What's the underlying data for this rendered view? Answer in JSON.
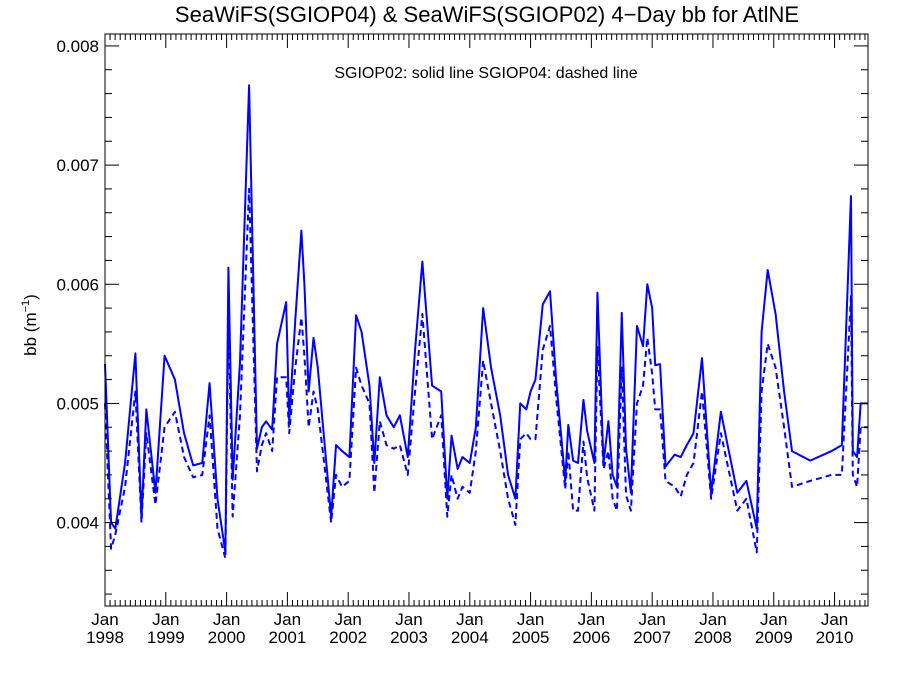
{
  "chart_data": {
    "type": "line",
    "title": "SeaWiFS(SGIOP04) & SeaWiFS(SGIOP02) 4−Day bb for AtlNE",
    "annotation": "SGIOP02: solid line   SGIOP04: dashed line",
    "ylabel": "bb (m",
    "ylabel_sup": "−1",
    "ylabel_close": ")",
    "ylim": [
      0.0033,
      0.0081
    ],
    "yticks": [
      {
        "value": 0.004,
        "label": "0.004"
      },
      {
        "value": 0.005,
        "label": "0.005"
      },
      {
        "value": 0.006,
        "label": "0.006"
      },
      {
        "value": 0.007,
        "label": "0.007"
      },
      {
        "value": 0.008,
        "label": "0.008"
      }
    ],
    "xlim": [
      1998.0,
      2010.55
    ],
    "xticks": [
      {
        "value": 1998,
        "month": "Jan",
        "year": "1998"
      },
      {
        "value": 1999,
        "month": "Jan",
        "year": "1999"
      },
      {
        "value": 2000,
        "month": "Jan",
        "year": "2000"
      },
      {
        "value": 2001,
        "month": "Jan",
        "year": "2001"
      },
      {
        "value": 2002,
        "month": "Jan",
        "year": "2002"
      },
      {
        "value": 2003,
        "month": "Jan",
        "year": "2003"
      },
      {
        "value": 2004,
        "month": "Jan",
        "year": "2004"
      },
      {
        "value": 2005,
        "month": "Jan",
        "year": "2005"
      },
      {
        "value": 2006,
        "month": "Jan",
        "year": "2006"
      },
      {
        "value": 2007,
        "month": "Jan",
        "year": "2007"
      },
      {
        "value": 2008,
        "month": "Jan",
        "year": "2008"
      },
      {
        "value": 2009,
        "month": "Jan",
        "year": "2009"
      },
      {
        "value": 2010,
        "month": "Jan",
        "year": "2010"
      }
    ],
    "grid": false,
    "line_color": "#0000ff",
    "series": [
      {
        "name": "SGIOP02",
        "style": "solid",
        "x": [
          1998.0,
          1998.1,
          1998.17,
          1998.33,
          1998.5,
          1998.6,
          1998.68,
          1998.83,
          1998.98,
          1999.15,
          1999.3,
          1999.45,
          1999.6,
          1999.72,
          1999.85,
          1999.98,
          2000.03,
          2000.1,
          2000.22,
          2000.37,
          2000.5,
          2000.58,
          2000.65,
          2000.75,
          2000.83,
          2000.98,
          2001.03,
          2001.13,
          2001.23,
          2001.28,
          2001.35,
          2001.43,
          2001.5,
          2001.57,
          2001.72,
          2001.8,
          2001.9,
          2002.02,
          2002.13,
          2002.22,
          2002.35,
          2002.43,
          2002.52,
          2002.63,
          2002.75,
          2002.85,
          2002.98,
          2003.1,
          2003.22,
          2003.38,
          2003.53,
          2003.63,
          2003.7,
          2003.8,
          2003.88,
          2004.0,
          2004.1,
          2004.22,
          2004.35,
          2004.5,
          2004.63,
          2004.75,
          2004.83,
          2004.93,
          2005.0,
          2005.08,
          2005.2,
          2005.32,
          2005.42,
          2005.57,
          2005.62,
          2005.7,
          2005.78,
          2005.87,
          2005.93,
          2006.05,
          2006.1,
          2006.2,
          2006.28,
          2006.35,
          2006.42,
          2006.5,
          2006.57,
          2006.65,
          2006.75,
          2006.85,
          2006.92,
          2007.0,
          2007.05,
          2007.13,
          2007.22,
          2007.37,
          2007.47,
          2007.57,
          2007.68,
          2007.82,
          2007.97,
          2008.13,
          2008.4,
          2008.55,
          2008.72,
          2008.8,
          2008.9,
          2009.03,
          2009.17,
          2009.3,
          2009.6,
          2009.95,
          2010.12,
          2010.27,
          2010.3,
          2010.37,
          2010.43,
          2010.5,
          2010.55
        ],
        "y": [
          0.00533,
          0.004,
          0.00395,
          0.0045,
          0.00542,
          0.00404,
          0.00495,
          0.00425,
          0.0054,
          0.0052,
          0.00475,
          0.00448,
          0.0045,
          0.00517,
          0.0042,
          0.00375,
          0.00614,
          0.00436,
          0.00534,
          0.00767,
          0.00462,
          0.0048,
          0.00485,
          0.00478,
          0.0055,
          0.00585,
          0.00485,
          0.0057,
          0.00645,
          0.006,
          0.0051,
          0.00555,
          0.0053,
          0.0049,
          0.00405,
          0.00465,
          0.0046,
          0.00455,
          0.00574,
          0.0056,
          0.00515,
          0.0045,
          0.00522,
          0.0049,
          0.0048,
          0.0049,
          0.00455,
          0.00545,
          0.00619,
          0.00515,
          0.0051,
          0.0042,
          0.00473,
          0.00445,
          0.00455,
          0.0045,
          0.0048,
          0.0058,
          0.0053,
          0.0049,
          0.0044,
          0.0042,
          0.005,
          0.00495,
          0.0051,
          0.0052,
          0.00583,
          0.00594,
          0.0052,
          0.00435,
          0.00482,
          0.00452,
          0.0045,
          0.00503,
          0.00477,
          0.0045,
          0.00593,
          0.0045,
          0.00485,
          0.0044,
          0.0043,
          0.00576,
          0.00462,
          0.00425,
          0.00565,
          0.00548,
          0.006,
          0.0058,
          0.00532,
          0.00533,
          0.00447,
          0.00457,
          0.00455,
          0.00465,
          0.00475,
          0.00538,
          0.00425,
          0.00493,
          0.00425,
          0.00435,
          0.00395,
          0.0056,
          0.00612,
          0.00575,
          0.0051,
          0.0046,
          0.00452,
          0.0046,
          0.00465,
          0.00674,
          0.0046,
          0.00455,
          0.005,
          0.005,
          0.005
        ]
      },
      {
        "name": "SGIOP04",
        "style": "dashed",
        "x": [
          1998.0,
          1998.1,
          1998.17,
          1998.33,
          1998.5,
          1998.6,
          1998.68,
          1998.83,
          1998.98,
          1999.15,
          1999.3,
          1999.45,
          1999.6,
          1999.72,
          1999.85,
          1999.98,
          2000.03,
          2000.1,
          2000.22,
          2000.37,
          2000.5,
          2000.58,
          2000.65,
          2000.75,
          2000.83,
          2000.98,
          2001.03,
          2001.13,
          2001.23,
          2001.28,
          2001.35,
          2001.43,
          2001.5,
          2001.57,
          2001.72,
          2001.8,
          2001.9,
          2002.02,
          2002.13,
          2002.22,
          2002.35,
          2002.43,
          2002.52,
          2002.63,
          2002.75,
          2002.85,
          2002.98,
          2003.1,
          2003.22,
          2003.38,
          2003.53,
          2003.63,
          2003.7,
          2003.8,
          2003.88,
          2004.0,
          2004.1,
          2004.22,
          2004.35,
          2004.5,
          2004.63,
          2004.75,
          2004.83,
          2004.93,
          2005.0,
          2005.08,
          2005.2,
          2005.32,
          2005.42,
          2005.57,
          2005.62,
          2005.7,
          2005.78,
          2005.87,
          2005.93,
          2006.05,
          2006.1,
          2006.2,
          2006.28,
          2006.35,
          2006.42,
          2006.5,
          2006.57,
          2006.65,
          2006.75,
          2006.85,
          2006.92,
          2007.0,
          2007.05,
          2007.13,
          2007.22,
          2007.37,
          2007.47,
          2007.57,
          2007.68,
          2007.82,
          2007.97,
          2008.13,
          2008.4,
          2008.55,
          2008.72,
          2008.8,
          2008.9,
          2009.03,
          2009.17,
          2009.3,
          2009.6,
          2009.95,
          2010.12,
          2010.27,
          2010.3,
          2010.37,
          2010.43,
          2010.5,
          2010.55
        ],
        "y": [
          0.005,
          0.00378,
          0.0039,
          0.0043,
          0.0051,
          0.004,
          0.00475,
          0.00415,
          0.0048,
          0.00493,
          0.00455,
          0.00438,
          0.0044,
          0.0049,
          0.00395,
          0.0037,
          0.00575,
          0.00405,
          0.0049,
          0.0068,
          0.00443,
          0.00465,
          0.00475,
          0.0046,
          0.00522,
          0.00522,
          0.00475,
          0.0053,
          0.00572,
          0.0054,
          0.0048,
          0.0051,
          0.00495,
          0.00465,
          0.004,
          0.0044,
          0.0043,
          0.00435,
          0.0053,
          0.00515,
          0.005,
          0.00425,
          0.00485,
          0.00465,
          0.00462,
          0.00465,
          0.0044,
          0.0051,
          0.00575,
          0.0047,
          0.0049,
          0.00405,
          0.0044,
          0.0042,
          0.0043,
          0.00425,
          0.0046,
          0.00536,
          0.005,
          0.0046,
          0.0042,
          0.00398,
          0.0047,
          0.00475,
          0.0047,
          0.0047,
          0.00545,
          0.00565,
          0.00505,
          0.00428,
          0.0046,
          0.0041,
          0.0041,
          0.00468,
          0.00438,
          0.0041,
          0.00548,
          0.00445,
          0.0046,
          0.0042,
          0.0041,
          0.0053,
          0.00423,
          0.0041,
          0.005,
          0.00515,
          0.00555,
          0.00525,
          0.00495,
          0.00495,
          0.00435,
          0.0043,
          0.00422,
          0.0044,
          0.0045,
          0.0051,
          0.0042,
          0.00475,
          0.0041,
          0.0042,
          0.00375,
          0.0051,
          0.0055,
          0.0053,
          0.0048,
          0.0043,
          0.00435,
          0.0044,
          0.0044,
          0.0059,
          0.0044,
          0.0043,
          0.0048,
          0.0048,
          0.0048
        ]
      }
    ]
  }
}
